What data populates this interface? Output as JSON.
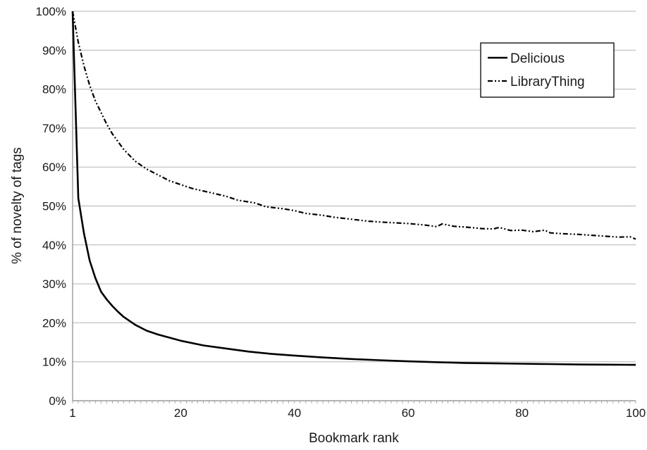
{
  "chart_data": {
    "type": "line",
    "title": "",
    "xlabel": "Bookmark rank",
    "ylabel": "% of novelty of tags",
    "xlim": [
      1,
      100
    ],
    "ylim": [
      0,
      100
    ],
    "x_ticks": [
      1,
      20,
      40,
      60,
      80,
      100
    ],
    "y_ticks": [
      0,
      10,
      20,
      30,
      40,
      50,
      60,
      70,
      80,
      90,
      100
    ],
    "y_tick_labels": [
      "0%",
      "10%",
      "20%",
      "30%",
      "40%",
      "50%",
      "60%",
      "70%",
      "80%",
      "90%",
      "100%"
    ],
    "grid": "horizontal",
    "legend_position": "top-right",
    "series": [
      {
        "name": "Delicious",
        "style": "solid",
        "color": "#000000",
        "points": [
          [
            1,
            100
          ],
          [
            2,
            52
          ],
          [
            3,
            43
          ],
          [
            4,
            36
          ],
          [
            5,
            31.5
          ],
          [
            6,
            28
          ],
          [
            7,
            26
          ],
          [
            8,
            24.3
          ],
          [
            9,
            22.8
          ],
          [
            10,
            21.5
          ],
          [
            12,
            19.5
          ],
          [
            14,
            18
          ],
          [
            16,
            17
          ],
          [
            18,
            16.2
          ],
          [
            20,
            15.4
          ],
          [
            24,
            14.2
          ],
          [
            28,
            13.4
          ],
          [
            32,
            12.6
          ],
          [
            36,
            12
          ],
          [
            40,
            11.6
          ],
          [
            45,
            11.1
          ],
          [
            50,
            10.7
          ],
          [
            55,
            10.4
          ],
          [
            60,
            10.1
          ],
          [
            65,
            9.9
          ],
          [
            70,
            9.7
          ],
          [
            75,
            9.6
          ],
          [
            80,
            9.5
          ],
          [
            85,
            9.4
          ],
          [
            90,
            9.3
          ],
          [
            95,
            9.25
          ],
          [
            100,
            9.2
          ]
        ]
      },
      {
        "name": "LibraryThing",
        "style": "dash-dot-dot",
        "color": "#000000",
        "points": [
          [
            1,
            100
          ],
          [
            2,
            92
          ],
          [
            3,
            86
          ],
          [
            4,
            81
          ],
          [
            5,
            77
          ],
          [
            6,
            74
          ],
          [
            7,
            71
          ],
          [
            8,
            68.5
          ],
          [
            9,
            66.5
          ],
          [
            10,
            64.5
          ],
          [
            12,
            61.5
          ],
          [
            14,
            59.5
          ],
          [
            16,
            58
          ],
          [
            18,
            56.5
          ],
          [
            20,
            55.5
          ],
          [
            22,
            54.5
          ],
          [
            25,
            53.5
          ],
          [
            28,
            52.5
          ],
          [
            30,
            51.5
          ],
          [
            33,
            50.8
          ],
          [
            35,
            49.8
          ],
          [
            38,
            49.3
          ],
          [
            40,
            48.8
          ],
          [
            42,
            48.1
          ],
          [
            45,
            47.6
          ],
          [
            47,
            47.1
          ],
          [
            50,
            46.6
          ],
          [
            53,
            46.1
          ],
          [
            56,
            45.8
          ],
          [
            60,
            45.5
          ],
          [
            63,
            45.1
          ],
          [
            65,
            44.7
          ],
          [
            66,
            45.4
          ],
          [
            68,
            44.8
          ],
          [
            70,
            44.6
          ],
          [
            73,
            44.2
          ],
          [
            75,
            44.1
          ],
          [
            76,
            44.5
          ],
          [
            78,
            43.7
          ],
          [
            80,
            43.8
          ],
          [
            82,
            43.4
          ],
          [
            84,
            43.8
          ],
          [
            85,
            43.1
          ],
          [
            87,
            42.9
          ],
          [
            90,
            42.7
          ],
          [
            93,
            42.4
          ],
          [
            95,
            42.2
          ],
          [
            97,
            42.0
          ],
          [
            99,
            42.1
          ],
          [
            100,
            41.5
          ]
        ]
      }
    ]
  }
}
